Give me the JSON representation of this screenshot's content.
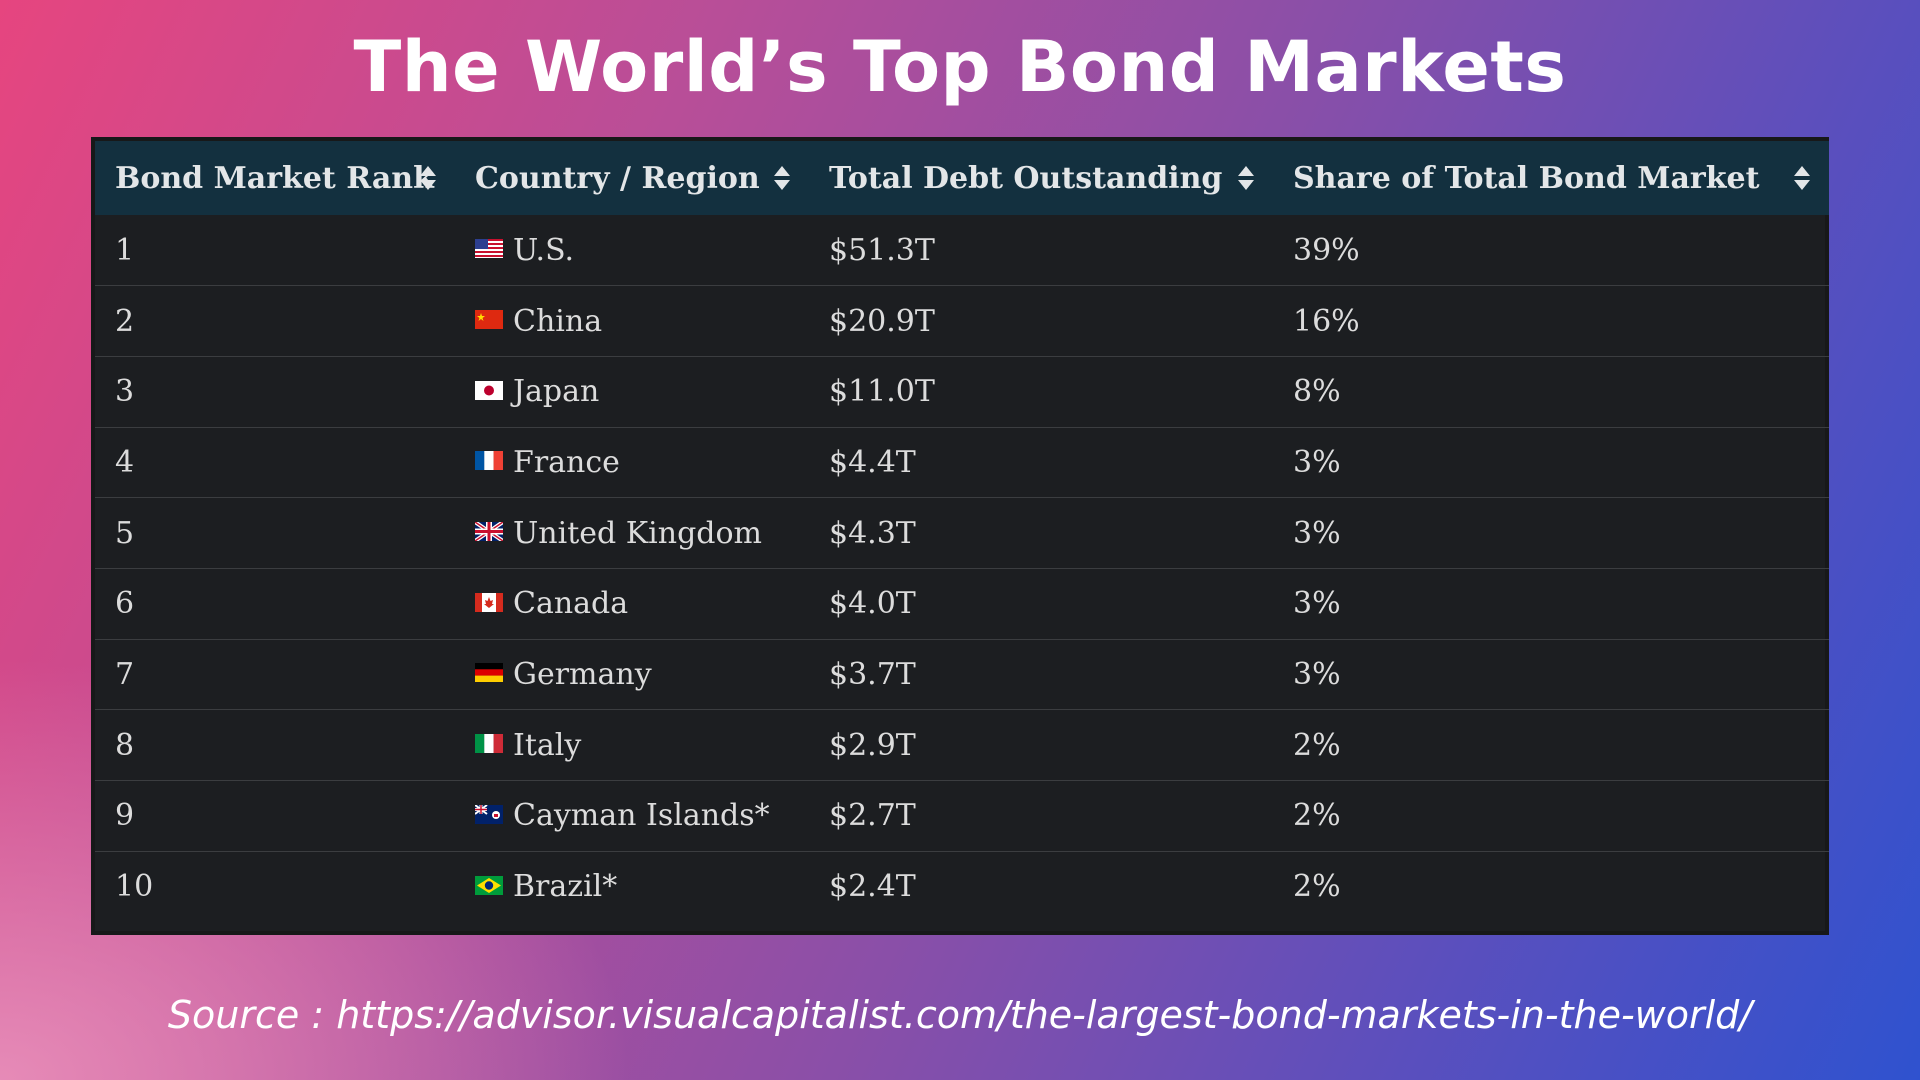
{
  "title": "The World’s Top Bond Markets",
  "source": "Source : https://advisor.visualcapitalist.com/the-largest-bond-markets-in-the-world/",
  "colors": {
    "header_bg": "#13303f",
    "table_bg": "#1c1e21",
    "text": "#dcdcdc",
    "title": "#ffffff"
  },
  "chart_data": {
    "type": "table",
    "columns": [
      "Bond Market Rank",
      "Country / Region",
      "Total Debt Outstanding",
      "Share of Total Bond Market"
    ],
    "rows": [
      {
        "rank": "1",
        "country": "U.S.",
        "flag": "us-flag-icon",
        "debt": "$51.3T",
        "share": "39%"
      },
      {
        "rank": "2",
        "country": "China",
        "flag": "china-flag-icon",
        "debt": "$20.9T",
        "share": "16%"
      },
      {
        "rank": "3",
        "country": "Japan",
        "flag": "japan-flag-icon",
        "debt": "$11.0T",
        "share": "8%"
      },
      {
        "rank": "4",
        "country": "France",
        "flag": "france-flag-icon",
        "debt": "$4.4T",
        "share": "3%"
      },
      {
        "rank": "5",
        "country": "United Kingdom",
        "flag": "uk-flag-icon",
        "debt": "$4.3T",
        "share": "3%"
      },
      {
        "rank": "6",
        "country": "Canada",
        "flag": "canada-flag-icon",
        "debt": "$4.0T",
        "share": "3%"
      },
      {
        "rank": "7",
        "country": "Germany",
        "flag": "germany-flag-icon",
        "debt": "$3.7T",
        "share": "3%"
      },
      {
        "rank": "8",
        "country": "Italy",
        "flag": "italy-flag-icon",
        "debt": "$2.9T",
        "share": "2%"
      },
      {
        "rank": "9",
        "country": "Cayman Islands*",
        "flag": "cayman-islands-flag-icon",
        "debt": "$2.7T",
        "share": "2%"
      },
      {
        "rank": "10",
        "country": "Brazil*",
        "flag": "brazil-flag-icon",
        "debt": "$2.4T",
        "share": "2%"
      }
    ]
  }
}
